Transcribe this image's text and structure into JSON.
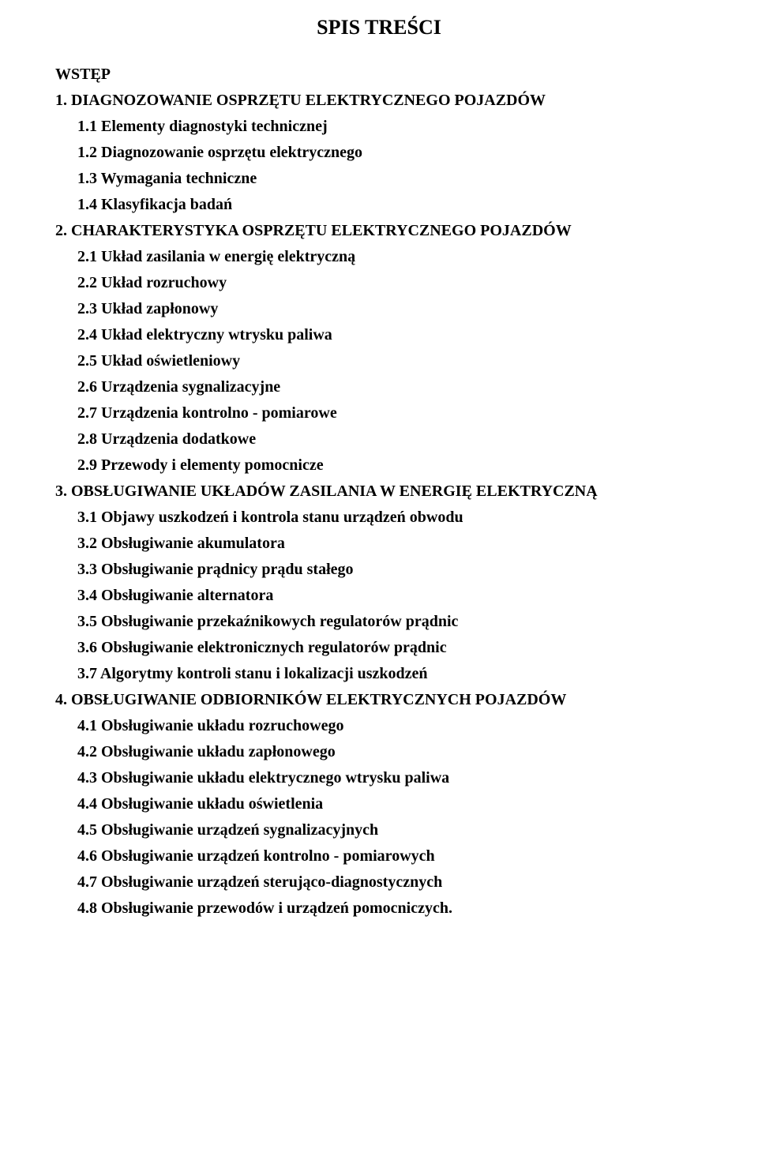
{
  "title": "SPIS TREŚCI",
  "entries": [
    {
      "text": "WSTĘP",
      "indent": 0
    },
    {
      "text": "1. DIAGNOZOWANIE OSPRZĘTU ELEKTRYCZNEGO POJAZDÓW",
      "indent": 0
    },
    {
      "text": "1.1 Elementy diagnostyki technicznej",
      "indent": 1
    },
    {
      "text": "1.2 Diagnozowanie osprzętu elektrycznego",
      "indent": 1
    },
    {
      "text": "1.3 Wymagania techniczne",
      "indent": 1
    },
    {
      "text": "1.4 Klasyfikacja badań",
      "indent": 1
    },
    {
      "text": "2. CHARAKTERYSTYKA OSPRZĘTU ELEKTRYCZNEGO POJAZDÓW",
      "indent": 0
    },
    {
      "text": "2.1 Układ zasilania w energię elektryczną",
      "indent": 1
    },
    {
      "text": "2.2 Układ rozruchowy",
      "indent": 1
    },
    {
      "text": "2.3 Układ zapłonowy",
      "indent": 1
    },
    {
      "text": "2.4 Układ elektryczny wtrysku paliwa",
      "indent": 1
    },
    {
      "text": "2.5 Układ oświetleniowy",
      "indent": 1
    },
    {
      "text": "2.6 Urządzenia sygnalizacyjne",
      "indent": 1
    },
    {
      "text": "2.7 Urządzenia kontrolno - pomiarowe",
      "indent": 1
    },
    {
      "text": "2.8 Urządzenia dodatkowe",
      "indent": 1
    },
    {
      "text": "2.9 Przewody i elementy pomocnicze",
      "indent": 1
    },
    {
      "text": "3. OBSŁUGIWANIE UKŁADÓW ZASILANIA W ENERGIĘ ELEKTRYCZNĄ",
      "indent": 0
    },
    {
      "text": "3.1 Objawy uszkodzeń i kontrola stanu urządzeń obwodu",
      "indent": 1
    },
    {
      "text": "3.2 Obsługiwanie akumulatora",
      "indent": 1
    },
    {
      "text": "3.3 Obsługiwanie prądnicy prądu stałego",
      "indent": 1
    },
    {
      "text": "3.4 Obsługiwanie alternatora",
      "indent": 1
    },
    {
      "text": "3.5 Obsługiwanie przekaźnikowych regulatorów  prądnic",
      "indent": 1
    },
    {
      "text": "3.6 Obsługiwanie elektronicznych regulatorów prądnic",
      "indent": 1
    },
    {
      "text": "3.7 Algorytmy kontroli stanu i lokalizacji uszkodzeń",
      "indent": 1
    },
    {
      "text": "4. OBSŁUGIWANIE ODBIORNIKÓW ELEKTRYCZNYCH POJAZDÓW",
      "indent": 0
    },
    {
      "text": "4.1 Obsługiwanie układu rozruchowego",
      "indent": 1
    },
    {
      "text": "4.2 Obsługiwanie układu zapłonowego",
      "indent": 1
    },
    {
      "text": "4.3 Obsługiwanie układu elektrycznego wtrysku paliwa",
      "indent": 1
    },
    {
      "text": "4.4 Obsługiwanie układu oświetlenia",
      "indent": 1
    },
    {
      "text": "4.5 Obsługiwanie urządzeń sygnalizacyjnych",
      "indent": 1
    },
    {
      "text": "4.6 Obsługiwanie urządzeń kontrolno - pomiarowych",
      "indent": 1
    },
    {
      "text": "4.7 Obsługiwanie urządzeń sterująco-diagnostycznych",
      "indent": 1
    },
    {
      "text": "4.8 Obsługiwanie przewodów i urządzeń pomocniczych.",
      "indent": 1
    }
  ]
}
